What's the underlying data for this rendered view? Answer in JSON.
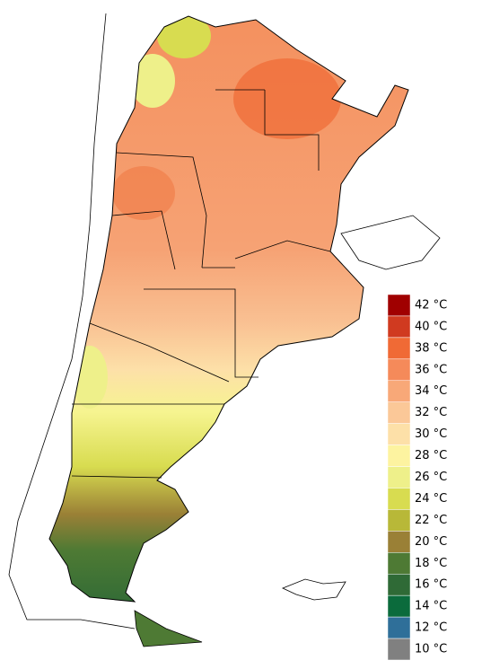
{
  "legend": {
    "items": [
      {
        "label": "42 °C",
        "color": "#a00000"
      },
      {
        "label": "40 °C",
        "color": "#d03a20"
      },
      {
        "label": "38 °C",
        "color": "#f06a35"
      },
      {
        "label": "36 °C",
        "color": "#f58a5a"
      },
      {
        "label": "34 °C",
        "color": "#f8a878"
      },
      {
        "label": "32 °C",
        "color": "#fbc898"
      },
      {
        "label": "30 °C",
        "color": "#fde0a8"
      },
      {
        "label": "28 °C",
        "color": "#fdf3a0"
      },
      {
        "label": "26 °C",
        "color": "#eef08a"
      },
      {
        "label": "24 °C",
        "color": "#d8dc50"
      },
      {
        "label": "22 °C",
        "color": "#b8b838"
      },
      {
        "label": "20 °C",
        "color": "#9a8036"
      },
      {
        "label": "18 °C",
        "color": "#4e7a34"
      },
      {
        "label": "16 °C",
        "color": "#2f6a36"
      },
      {
        "label": "14 °C",
        "color": "#0b6b3c"
      },
      {
        "label": "12 °C",
        "color": "#2f6f99"
      },
      {
        "label": "10 °C",
        "color": "#808080"
      }
    ]
  }
}
